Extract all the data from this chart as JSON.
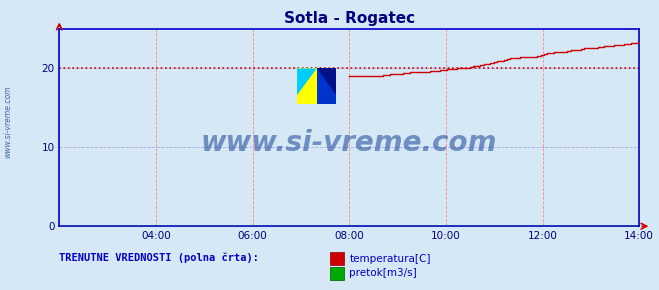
{
  "title": "Sotla - Rogatec",
  "title_color": "#000080",
  "bg_color": "#d6e8f5",
  "plot_bg_color": "#d6e8f5",
  "border_color": "#0000cc",
  "grid_color_x": "#ff8888",
  "grid_color_y": "#aaaadd",
  "tick_color": "#000080",
  "ylabel_text": "www.si-vreme.com",
  "ylabel_color": "#4466aa",
  "xlim": [
    0,
    864
  ],
  "ylim": [
    0,
    25
  ],
  "yticks": [
    0,
    10,
    20
  ],
  "xticks": [
    144,
    288,
    432,
    576,
    720,
    864
  ],
  "xtick_labels": [
    "04:00",
    "06:00",
    "08:00",
    "10:00",
    "12:00",
    "14:00"
  ],
  "hline_y": 20,
  "hline_color": "#cc0000",
  "temp_color": "#cc0000",
  "flow_color": "#00aa00",
  "watermark_text": "www.si-vreme.com",
  "watermark_color": "#1a4499",
  "legend_label1": "temperatura[C]",
  "legend_label2": "pretok[m3/s]",
  "legend_text": "TRENUTNE VREDNOSTI (polna črta):",
  "legend_color": "#0000cc",
  "arrow_color": "#cc0000",
  "temp_data_x": [
    432,
    437,
    442,
    447,
    452,
    457,
    462,
    467,
    472,
    477,
    482,
    487,
    492,
    497,
    502,
    507,
    512,
    517,
    522,
    527,
    532,
    537,
    542,
    547,
    552,
    557,
    562,
    567,
    572,
    577,
    582,
    587,
    592,
    597,
    602,
    607,
    612,
    617,
    622,
    627,
    632,
    637,
    642,
    647,
    652,
    657,
    662,
    667,
    672,
    677,
    682,
    687,
    692,
    697,
    702,
    707,
    712,
    717,
    722,
    727,
    732,
    737,
    742,
    747,
    752,
    757,
    762,
    767,
    772,
    777,
    782,
    787,
    792,
    797,
    802,
    807,
    812,
    817,
    822,
    827,
    832,
    837,
    842,
    847,
    852,
    857,
    862
  ],
  "temp_data_y": [
    19.0,
    19.0,
    19.0,
    19.0,
    19.0,
    19.0,
    19.1,
    19.1,
    19.1,
    19.1,
    19.2,
    19.2,
    19.3,
    19.3,
    19.3,
    19.3,
    19.4,
    19.4,
    19.5,
    19.5,
    19.5,
    19.6,
    19.6,
    19.6,
    19.7,
    19.7,
    19.7,
    19.8,
    19.8,
    19.9,
    19.9,
    19.9,
    20.0,
    20.0,
    20.1,
    20.1,
    20.2,
    20.3,
    20.3,
    20.4,
    20.5,
    20.6,
    20.7,
    20.8,
    20.9,
    21.0,
    21.1,
    21.2,
    21.3,
    21.3,
    21.3,
    21.4,
    21.4,
    21.4,
    21.5,
    21.5,
    21.6,
    21.7,
    21.8,
    21.9,
    22.0,
    22.1,
    22.1,
    22.1,
    22.1,
    22.2,
    22.3,
    22.3,
    22.4,
    22.5,
    22.6,
    22.6,
    22.6,
    22.6,
    22.7,
    22.7,
    22.8,
    22.9,
    22.9,
    23.0,
    23.0,
    23.0,
    23.1,
    23.1,
    23.2,
    23.2,
    23.3
  ],
  "flow_data_x": [
    0,
    864
  ],
  "flow_data_y": [
    0.02,
    0.02
  ]
}
